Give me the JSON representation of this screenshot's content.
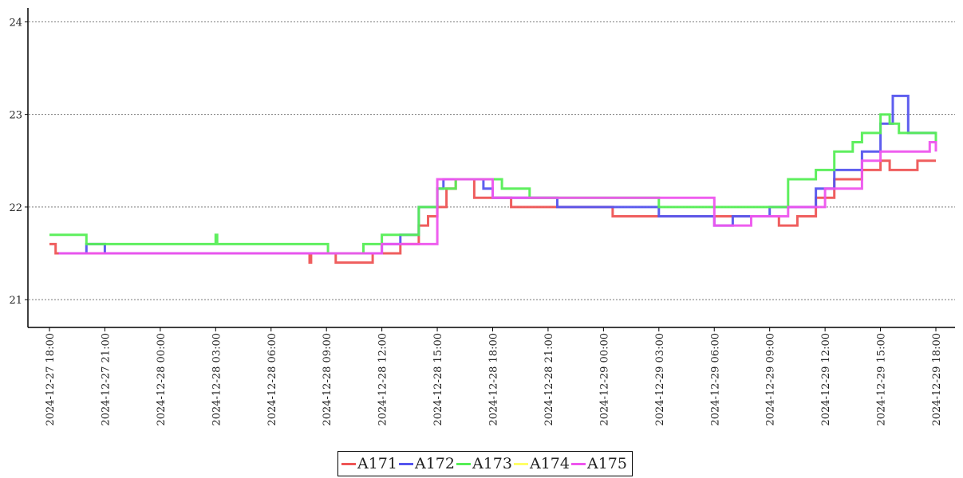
{
  "chart_data": {
    "type": "line",
    "title": "",
    "xlabel": "",
    "ylabel": "",
    "xlim": [
      "2024-12-27 18:00",
      "2024-12-29 18:00"
    ],
    "ylim": [
      20.7,
      24.15
    ],
    "grid": "horizontal dotted",
    "legend_placement": "bottom-center",
    "x_ticks": [
      "2024-12-27 18:00",
      "2024-12-27 21:00",
      "2024-12-28 00:00",
      "2024-12-28 03:00",
      "2024-12-28 06:00",
      "2024-12-28 09:00",
      "2024-12-28 12:00",
      "2024-12-28 15:00",
      "2024-12-28 18:00",
      "2024-12-28 21:00",
      "2024-12-29 00:00",
      "2024-12-29 03:00",
      "2024-12-29 06:00",
      "2024-12-29 09:00",
      "2024-12-29 12:00",
      "2024-12-29 15:00",
      "2024-12-29 18:00"
    ],
    "y_ticks": [
      "21",
      "22",
      "23",
      "24"
    ],
    "series": [
      {
        "name": "A171",
        "color": "#ee5555",
        "points": [
          [
            "2024-12-27 18:00",
            21.6
          ],
          [
            "2024-12-27 18:20",
            21.5
          ],
          [
            "2024-12-28 08:00",
            21.5
          ],
          [
            "2024-12-28 08:05",
            21.4
          ],
          [
            "2024-12-28 08:10",
            21.5
          ],
          [
            "2024-12-28 09:30",
            21.4
          ],
          [
            "2024-12-28 11:30",
            21.5
          ],
          [
            "2024-12-28 13:00",
            21.6
          ],
          [
            "2024-12-28 14:00",
            21.8
          ],
          [
            "2024-12-28 14:30",
            21.9
          ],
          [
            "2024-12-28 15:00",
            22.0
          ],
          [
            "2024-12-28 15:30",
            22.2
          ],
          [
            "2024-12-28 16:00",
            22.3
          ],
          [
            "2024-12-28 17:00",
            22.1
          ],
          [
            "2024-12-28 19:00",
            22.0
          ],
          [
            "2024-12-29 00:30",
            21.9
          ],
          [
            "2024-12-29 09:30",
            21.8
          ],
          [
            "2024-12-29 10:30",
            21.9
          ],
          [
            "2024-12-29 11:30",
            22.1
          ],
          [
            "2024-12-29 12:30",
            22.3
          ],
          [
            "2024-12-29 14:00",
            22.4
          ],
          [
            "2024-12-29 15:00",
            22.5
          ],
          [
            "2024-12-29 15:30",
            22.4
          ],
          [
            "2024-12-29 17:00",
            22.5
          ],
          [
            "2024-12-29 18:00",
            22.5
          ]
        ]
      },
      {
        "name": "A172",
        "color": "#5555ee",
        "points": [
          [
            "2024-12-27 18:30",
            21.5
          ],
          [
            "2024-12-27 20:00",
            21.6
          ],
          [
            "2024-12-27 21:00",
            21.5
          ],
          [
            "2024-12-28 12:00",
            21.6
          ],
          [
            "2024-12-28 13:00",
            21.7
          ],
          [
            "2024-12-28 14:00",
            22.0
          ],
          [
            "2024-12-28 15:00",
            22.2
          ],
          [
            "2024-12-28 15:20",
            22.3
          ],
          [
            "2024-12-28 17:30",
            22.2
          ],
          [
            "2024-12-28 18:00",
            22.1
          ],
          [
            "2024-12-28 21:30",
            22.0
          ],
          [
            "2024-12-29 03:00",
            21.9
          ],
          [
            "2024-12-29 06:00",
            21.8
          ],
          [
            "2024-12-29 07:00",
            21.9
          ],
          [
            "2024-12-29 09:00",
            22.0
          ],
          [
            "2024-12-29 11:30",
            22.2
          ],
          [
            "2024-12-29 12:30",
            22.4
          ],
          [
            "2024-12-29 14:00",
            22.6
          ],
          [
            "2024-12-29 15:00",
            22.9
          ],
          [
            "2024-12-29 15:40",
            23.2
          ],
          [
            "2024-12-29 16:30",
            22.8
          ],
          [
            "2024-12-29 18:00",
            22.8
          ]
        ]
      },
      {
        "name": "A173",
        "color": "#55ee55",
        "points": [
          [
            "2024-12-27 18:00",
            21.7
          ],
          [
            "2024-12-27 20:00",
            21.6
          ],
          [
            "2024-12-28 03:00",
            21.7
          ],
          [
            "2024-12-28 03:05",
            21.6
          ],
          [
            "2024-12-28 09:00",
            21.6
          ],
          [
            "2024-12-28 09:05",
            21.5
          ],
          [
            "2024-12-28 11:00",
            21.6
          ],
          [
            "2024-12-28 12:00",
            21.7
          ],
          [
            "2024-12-28 14:00",
            22.0
          ],
          [
            "2024-12-28 15:00",
            22.2
          ],
          [
            "2024-12-28 16:00",
            22.3
          ],
          [
            "2024-12-28 18:30",
            22.2
          ],
          [
            "2024-12-28 20:00",
            22.1
          ],
          [
            "2024-12-29 03:00",
            22.0
          ],
          [
            "2024-12-29 09:00",
            22.0
          ],
          [
            "2024-12-29 10:00",
            22.3
          ],
          [
            "2024-12-29 11:30",
            22.4
          ],
          [
            "2024-12-29 12:30",
            22.6
          ],
          [
            "2024-12-29 13:30",
            22.7
          ],
          [
            "2024-12-29 14:00",
            22.8
          ],
          [
            "2024-12-29 15:00",
            23.0
          ],
          [
            "2024-12-29 15:30",
            22.9
          ],
          [
            "2024-12-29 16:00",
            22.8
          ],
          [
            "2024-12-29 18:00",
            22.7
          ]
        ]
      },
      {
        "name": "A174",
        "color": "#ffff66",
        "points": []
      },
      {
        "name": "A175",
        "color": "#ee55ee",
        "points": [
          [
            "2024-12-27 18:30",
            21.5
          ],
          [
            "2024-12-27 22:00",
            21.5
          ],
          [
            "2024-12-28 12:00",
            21.6
          ],
          [
            "2024-12-28 15:00",
            22.3
          ],
          [
            "2024-12-28 18:00",
            22.1
          ],
          [
            "2024-12-29 06:00",
            21.8
          ],
          [
            "2024-12-29 08:00",
            21.9
          ],
          [
            "2024-12-29 10:00",
            22.0
          ],
          [
            "2024-12-29 12:00",
            22.2
          ],
          [
            "2024-12-29 14:00",
            22.5
          ],
          [
            "2024-12-29 15:00",
            22.6
          ],
          [
            "2024-12-29 17:30",
            22.6
          ],
          [
            "2024-12-29 17:40",
            22.7
          ],
          [
            "2024-12-29 18:00",
            22.6
          ]
        ]
      }
    ]
  }
}
